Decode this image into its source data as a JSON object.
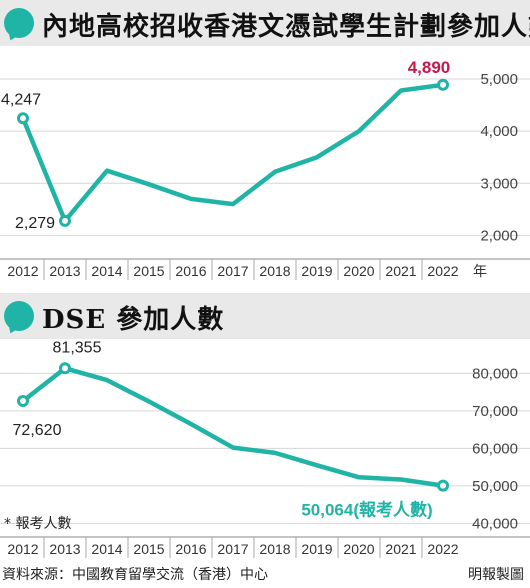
{
  "chart_data": [
    {
      "type": "line",
      "title": "內地高校招收香港文憑試學生計劃參加人數",
      "x": [
        "2012",
        "2013",
        "2014",
        "2015",
        "2016",
        "2017",
        "2018",
        "2019",
        "2020",
        "2021",
        "2022"
      ],
      "x_suffix": "年",
      "values": [
        4247,
        2279,
        3240,
        2980,
        2700,
        2600,
        3220,
        3500,
        4000,
        4780,
        4890
      ],
      "ylim": [
        1700,
        5250
      ],
      "yticks": [
        "2,000",
        "3,000",
        "4,000",
        "5,000"
      ],
      "ytick_values": [
        2000,
        3000,
        4000,
        5000
      ],
      "labels": [
        {
          "index": 0,
          "text": "4,247"
        },
        {
          "index": 1,
          "text": "2,279"
        },
        {
          "index": 10,
          "text": "4,890",
          "color": "#c8174a"
        }
      ],
      "grid": true,
      "line_color": "#20b4a6"
    },
    {
      "type": "line",
      "title": "DSE 參加人數",
      "x": [
        "2012",
        "2013",
        "2014",
        "2015",
        "2016",
        "2017",
        "2018",
        "2019",
        "2020",
        "2021",
        "2022"
      ],
      "values": [
        72620,
        81355,
        78200,
        72500,
        66500,
        60200,
        58800,
        55500,
        52300,
        51700,
        50064
      ],
      "ylim": [
        38500,
        86500
      ],
      "yticks": [
        "40,000",
        "50,000",
        "60,000",
        "70,000",
        "80,000"
      ],
      "ytick_values": [
        40000,
        50000,
        60000,
        70000,
        80000
      ],
      "labels": [
        {
          "index": 0,
          "text": "72,620"
        },
        {
          "index": 1,
          "text": "81,355"
        },
        {
          "index": 10,
          "text": "50,064(報考人數)",
          "color": "#20b4a6"
        }
      ],
      "grid": true,
      "line_color": "#20b4a6"
    }
  ],
  "note": "* 報考人數",
  "footer": {
    "source": "資料來源：中國教育留學交流（香港）中心",
    "credit": "明報製圖"
  }
}
